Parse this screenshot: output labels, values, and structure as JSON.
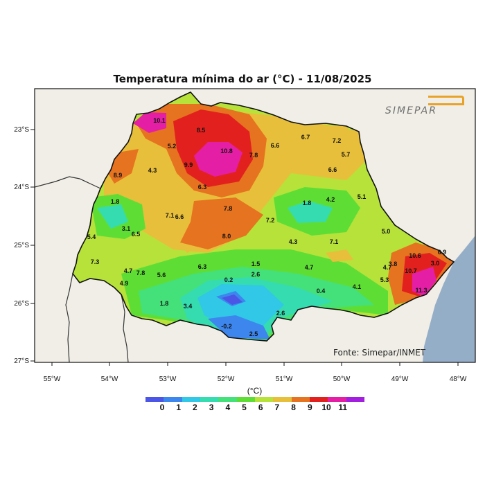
{
  "title": "Temperatura mínima do ar (°C) - 11/08/2025",
  "credit": "Fonte: Simepar/INMET",
  "logo_text": "SIMEPAR",
  "axes": {
    "lon_labels": [
      "55°W",
      "54°W",
      "53°W",
      "52°W",
      "51°W",
      "50°W",
      "49°W",
      "48°W"
    ],
    "lat_labels": [
      "23°S",
      "24°S",
      "25°S",
      "26°S",
      "27°S"
    ]
  },
  "colorbar": {
    "title": "(°C)",
    "ticks": [
      "0",
      "1",
      "2",
      "3",
      "4",
      "5",
      "6",
      "7",
      "8",
      "9",
      "10",
      "11"
    ],
    "colors": [
      "#4b55e6",
      "#3d86ee",
      "#31c7e6",
      "#35dcb0",
      "#44e07a",
      "#5ede35",
      "#b6e23a",
      "#e8bf3a",
      "#e6731f",
      "#e2211f",
      "#e51fa5",
      "#a21fe0"
    ]
  },
  "colors": {
    "background_land": "#f0eee6",
    "ocean": "#95aec8"
  },
  "stations": [
    {
      "value": "10.1"
    },
    {
      "value": "8.5"
    },
    {
      "value": "5.2"
    },
    {
      "value": "10.8"
    },
    {
      "value": "7.8"
    },
    {
      "value": "6.6"
    },
    {
      "value": "9.9"
    },
    {
      "value": "8.9"
    },
    {
      "value": "4.3"
    },
    {
      "value": "6.3"
    },
    {
      "value": "6.7"
    },
    {
      "value": "7.2"
    },
    {
      "value": "5.7"
    },
    {
      "value": "6.6"
    },
    {
      "value": "5.1"
    },
    {
      "value": "1.8"
    },
    {
      "value": "4.2"
    },
    {
      "value": "7.8"
    },
    {
      "value": "7.2"
    },
    {
      "value": "1.8"
    },
    {
      "value": "7.1"
    },
    {
      "value": "6.6"
    },
    {
      "value": "3.1"
    },
    {
      "value": "6.5"
    },
    {
      "value": "5.4"
    },
    {
      "value": "8.0"
    },
    {
      "value": "4.3"
    },
    {
      "value": "7.1"
    },
    {
      "value": "5.0"
    },
    {
      "value": "7.3"
    },
    {
      "value": "4.7"
    },
    {
      "value": "7.8"
    },
    {
      "value": "5.6"
    },
    {
      "value": "6.3"
    },
    {
      "value": "1.5"
    },
    {
      "value": "2.6"
    },
    {
      "value": "4.7"
    },
    {
      "value": "4.7"
    },
    {
      "value": "3.8"
    },
    {
      "value": "4.9"
    },
    {
      "value": "0.2"
    },
    {
      "value": "5.3"
    },
    {
      "value": "4.1"
    },
    {
      "value": "0.4"
    },
    {
      "value": "1.8"
    },
    {
      "value": "3.4"
    },
    {
      "value": "2.6"
    },
    {
      "value": "-0.2"
    },
    {
      "value": "2.5"
    },
    {
      "value": "10.6"
    },
    {
      "value": "6.9"
    },
    {
      "value": "10.7"
    },
    {
      "value": "11.3"
    },
    {
      "value": "3.0"
    }
  ]
}
